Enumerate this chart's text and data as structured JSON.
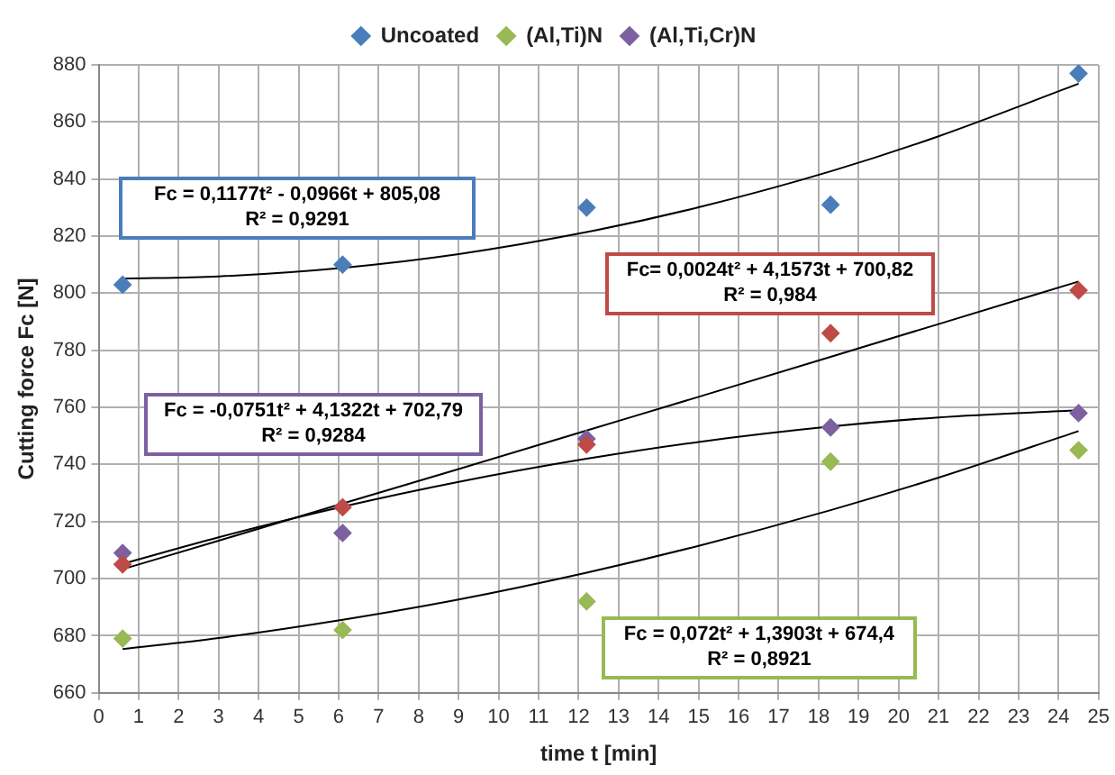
{
  "chart_data": {
    "type": "scatter",
    "xlabel": "time t [min]",
    "ylabel": "Cutting force Fc [N]",
    "x": [
      0.6,
      6.1,
      12.2,
      18.3,
      24.5
    ],
    "series": [
      {
        "name": "Uncoated",
        "marker": "diamond",
        "color": "#4a7ebb",
        "values": [
          803,
          810,
          830,
          831,
          877
        ]
      },
      {
        "marker": "diamond",
        "color": "#be4b48",
        "values": [
          705,
          725,
          747,
          786,
          801
        ]
      },
      {
        "name": "(Al,Ti)N",
        "marker": "diamond",
        "color": "#98b954",
        "values": [
          679,
          682,
          692,
          741,
          745
        ]
      },
      {
        "name": "(Al,Ti,Cr)N",
        "marker": "diamond",
        "color": "#7d60a0",
        "values": [
          709,
          716,
          749,
          753,
          758
        ]
      },
      {
        "type": "line",
        "marker": "none",
        "color": "#000000",
        "x": [
          0.6,
          3,
          6.1,
          9,
          12.2,
          15,
          18.3,
          21,
          24.5
        ],
        "values": [
          805.1,
          805.9,
          808.9,
          813.7,
          821.4,
          830.1,
          842.7,
          855.0,
          873.4
        ]
      },
      {
        "type": "line",
        "marker": "none",
        "color": "#000000",
        "x": [
          0.6,
          3,
          6.1,
          9,
          12.2,
          15,
          18.3,
          21,
          24.5
        ],
        "values": [
          703.3,
          713.3,
          726.3,
          738.4,
          751.9,
          763.7,
          777.7,
          789.2,
          804.1
        ]
      },
      {
        "type": "line",
        "marker": "none",
        "color": "#000000",
        "x": [
          0.6,
          3,
          6.1,
          9,
          12.2,
          15,
          18.3,
          21,
          24.5
        ],
        "values": [
          675.3,
          679.2,
          685.6,
          692.7,
          702.1,
          711.5,
          724.0,
          735.4,
          751.7
        ]
      },
      {
        "type": "line",
        "marker": "none",
        "color": "#000000",
        "x": [
          0.6,
          3,
          6.1,
          9,
          12.2,
          15,
          18.3,
          21,
          24.5
        ],
        "values": [
          705.2,
          714.5,
          725.2,
          733.9,
          742.0,
          747.9,
          753.3,
          756.5,
          759.0
        ]
      }
    ],
    "xlim": [
      0,
      25
    ],
    "xticks": [
      0,
      1,
      2,
      3,
      4,
      5,
      6,
      7,
      8,
      9,
      10,
      11,
      12,
      13,
      14,
      15,
      16,
      17,
      18,
      19,
      20,
      21,
      22,
      23,
      24,
      25
    ],
    "ylim": [
      660,
      880
    ],
    "yticks": [
      660,
      680,
      700,
      720,
      740,
      760,
      780,
      800,
      820,
      840,
      860,
      880
    ],
    "grid": true,
    "legend": "top",
    "annotations": [
      "Fc = 0,1177t² - 0,0966t + 805,08\nR² = 0,9291",
      "Fc= 0,0024t² + 4,1573t + 700,82\nR² = 0,984",
      "Fc = 0,072t² + 1,3903t + 674,4\nR² = 0,8921",
      "Fc = -0,0751t² + 4,1322t + 702,79\nR² = 0,9284"
    ]
  }
}
